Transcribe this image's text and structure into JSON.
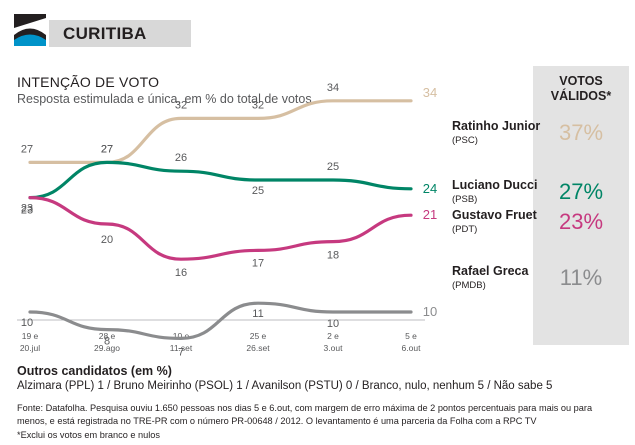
{
  "header": {
    "city": "CURITIBA"
  },
  "title": "INTENÇÃO DE VOTO",
  "subtitle": "Resposta estimulada e única, em % do total de votos",
  "valid_votes_header": {
    "line1": "VOTOS",
    "line2": "VÁLIDOS*"
  },
  "chart_data": {
    "type": "line",
    "categories": [
      "19 e 20.jul",
      "28 e 29.ago",
      "10 e 11.set",
      "25 e 26.set",
      "2 e 3.out",
      "5 e 6.out"
    ],
    "category_labels": [
      [
        "19 e",
        "20.jul"
      ],
      [
        "28 e",
        "29.ago"
      ],
      [
        "10 e",
        "11.set"
      ],
      [
        "25 e",
        "26.set"
      ],
      [
        "2 e",
        "3.out"
      ],
      [
        "5 e",
        "6.out"
      ]
    ],
    "series": [
      {
        "name": "Ratinho Junior",
        "party": "(PSC)",
        "values": [
          27,
          27,
          32,
          32,
          34,
          34
        ],
        "color": "#d6bfa2",
        "valid_votes": "37%",
        "label_dy": [
          -8,
          -8,
          -8,
          -8,
          -8
        ]
      },
      {
        "name": "Luciano Ducci",
        "party": "(PSB)",
        "values": [
          23,
          27,
          26,
          25,
          25,
          24
        ],
        "color": "#008566",
        "valid_votes": "27%",
        "label_dy": [
          0,
          0,
          0,
          0,
          0
        ]
      },
      {
        "name": "Gustavo Fruet",
        "party": "(PDT)",
        "values": [
          23,
          20,
          16,
          17,
          18,
          21
        ],
        "color": "#c6397f",
        "valid_votes": "23%",
        "label_dy": [
          0,
          0,
          0,
          0,
          0
        ]
      },
      {
        "name": "Rafael Greca",
        "party": "(PMDB)",
        "values": [
          10,
          8,
          7,
          11,
          10,
          10
        ],
        "color": "#8b8c8e",
        "valid_votes": "11%",
        "label_dy": [
          0,
          0,
          0,
          0,
          0
        ]
      }
    ],
    "ylim": [
      0,
      40
    ],
    "grid": false
  },
  "others": {
    "title": "Outros candidatos (em %)",
    "text": "Alzimara (PPL) 1 / Bruno Meirinho (PSOL) 1 / Avanilson (PSTU) 0 /  Branco, nulo, nenhum 5 / Não sabe 5"
  },
  "source": "Fonte: Datafolha. Pesquisa ouviu 1.650 pessoas nos dias 5 e 6.out, com margem de erro máxima de 2 pontos percentuais para mais ou para menos, e está registrada no TRE-PR com o número PR-00648 / 2012. O levantamento é uma parceria da Folha com a RPC TV",
  "footnote": "*Exclui os votos em branco e nulos",
  "colors": {
    "label_gray": "#58595b",
    "badge_bg": "#d8d8d8",
    "valid_bg": "#e3e3e3"
  }
}
